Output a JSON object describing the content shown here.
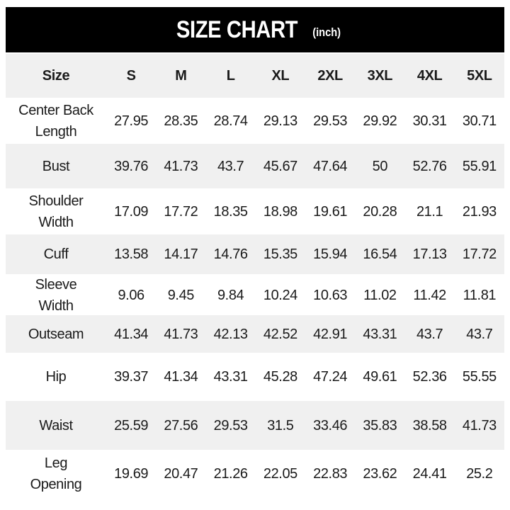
{
  "title": "SIZE CHART",
  "unit": "(inch)",
  "colors": {
    "title_bg": "#000000",
    "title_text": "#ffffff",
    "stripe": "#f0f0f0"
  },
  "header": [
    "Size",
    "S",
    "M",
    "L",
    "XL",
    "2XL",
    "3XL",
    "4XL",
    "5XL"
  ],
  "rows": [
    {
      "label": "Center Back\nLength",
      "values": [
        "27.95",
        "28.35",
        "28.74",
        "29.13",
        "29.53",
        "29.92",
        "30.31",
        "30.71"
      ]
    },
    {
      "label": "Bust",
      "values": [
        "39.76",
        "41.73",
        "43.7",
        "45.67",
        "47.64",
        "50",
        "52.76",
        "55.91"
      ]
    },
    {
      "label": "Shoulder\nWidth",
      "values": [
        "17.09",
        "17.72",
        "18.35",
        "18.98",
        "19.61",
        "20.28",
        "21.1",
        "21.93"
      ]
    },
    {
      "label": "Cuff",
      "values": [
        "13.58",
        "14.17",
        "14.76",
        "15.35",
        "15.94",
        "16.54",
        "17.13",
        "17.72"
      ]
    },
    {
      "label": "Sleeve\nWidth",
      "values": [
        "9.06",
        "9.45",
        "9.84",
        "10.24",
        "10.63",
        "11.02",
        "11.42",
        "11.81"
      ]
    },
    {
      "label": "Outseam",
      "values": [
        "41.34",
        "41.73",
        "42.13",
        "42.52",
        "42.91",
        "43.31",
        "43.7",
        "43.7"
      ]
    },
    {
      "label": "Hip",
      "values": [
        "39.37",
        "41.34",
        "43.31",
        "45.28",
        "47.24",
        "49.61",
        "52.36",
        "55.55"
      ]
    },
    {
      "label": "Waist",
      "values": [
        "25.59",
        "27.56",
        "29.53",
        "31.5",
        "33.46",
        "35.83",
        "38.58",
        "41.73"
      ]
    },
    {
      "label": "Leg\nOpening",
      "values": [
        "19.69",
        "20.47",
        "21.26",
        "22.05",
        "22.83",
        "23.62",
        "24.41",
        "25.2"
      ]
    }
  ]
}
